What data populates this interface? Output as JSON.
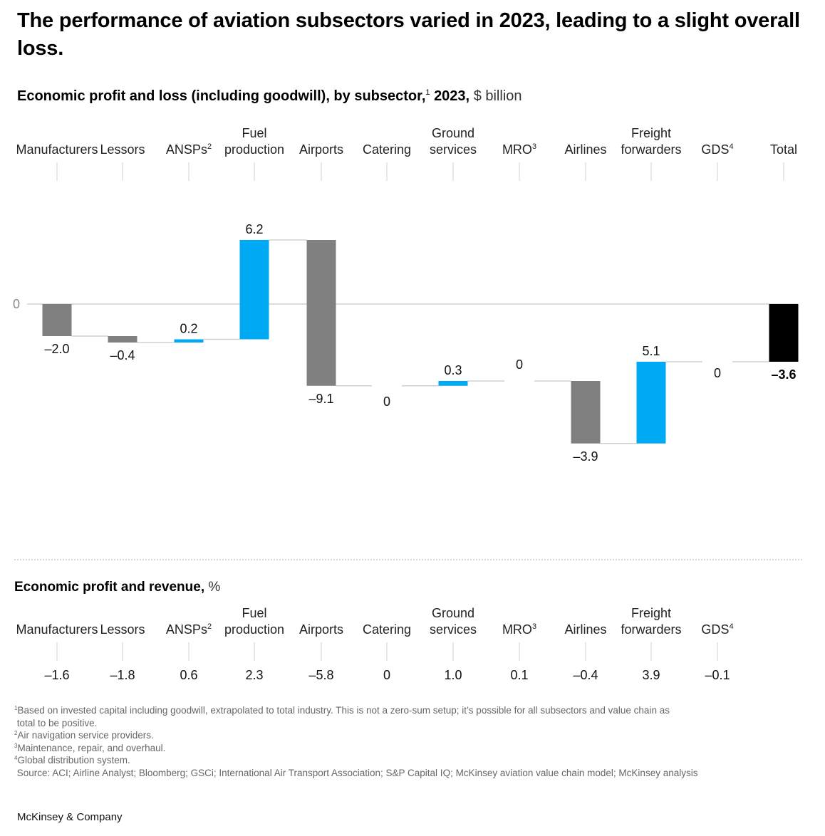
{
  "title": "The performance of aviation subsectors varied in 2023, leading to a slight overall loss.",
  "chart_data": [
    {
      "type": "bar",
      "subtype": "waterfall",
      "title_bold": "Economic profit and loss (including goodwill), by subsector,",
      "title_sup": "1",
      "title_year": "2023,",
      "title_unit": "$ billion",
      "ylabel": "",
      "xlabel": "",
      "zero_label": "0",
      "ylim": [
        -9.4,
        6.5
      ],
      "grid": false,
      "categories": [
        {
          "lines": [
            "",
            "Manufacturers"
          ],
          "sup": ""
        },
        {
          "lines": [
            "",
            "Lessors"
          ],
          "sup": ""
        },
        {
          "lines": [
            "",
            "ANSPs"
          ],
          "sup": "2"
        },
        {
          "lines": [
            "Fuel",
            "production"
          ],
          "sup": ""
        },
        {
          "lines": [
            "",
            "Airports"
          ],
          "sup": ""
        },
        {
          "lines": [
            "",
            "Catering"
          ],
          "sup": ""
        },
        {
          "lines": [
            "Ground",
            "services"
          ],
          "sup": ""
        },
        {
          "lines": [
            "",
            "MRO"
          ],
          "sup": "3"
        },
        {
          "lines": [
            "",
            "Airlines"
          ],
          "sup": ""
        },
        {
          "lines": [
            "Freight",
            "forwarders"
          ],
          "sup": ""
        },
        {
          "lines": [
            "",
            "GDS"
          ],
          "sup": "4"
        },
        {
          "lines": [
            "",
            "Total"
          ],
          "sup": ""
        }
      ],
      "values": [
        -2.0,
        -0.4,
        0.2,
        6.2,
        -9.1,
        0,
        0.3,
        0,
        -3.9,
        5.1,
        0,
        -3.6
      ],
      "labels": [
        "–2.0",
        "–0.4",
        "0.2",
        "6.2",
        "–9.1",
        "0",
        "0.3",
        "0",
        "–3.9",
        "5.1",
        "0",
        "–3.6"
      ],
      "is_total": [
        false,
        false,
        false,
        false,
        false,
        false,
        false,
        false,
        false,
        false,
        false,
        true
      ],
      "colors": {
        "positive": "#00A9F4",
        "negative": "#808080",
        "total": "#000000",
        "connector": "#D0D0D0",
        "axis": "#D0D0D0"
      }
    },
    {
      "type": "table",
      "title_bold": "Economic profit and revenue,",
      "title_unit": "%",
      "categories": [
        {
          "lines": [
            "",
            "Manufacturers"
          ],
          "sup": ""
        },
        {
          "lines": [
            "",
            "Lessors"
          ],
          "sup": ""
        },
        {
          "lines": [
            "",
            "ANSPs"
          ],
          "sup": "2"
        },
        {
          "lines": [
            "Fuel",
            "production"
          ],
          "sup": ""
        },
        {
          "lines": [
            "",
            "Airports"
          ],
          "sup": ""
        },
        {
          "lines": [
            "",
            "Catering"
          ],
          "sup": ""
        },
        {
          "lines": [
            "Ground",
            "services"
          ],
          "sup": ""
        },
        {
          "lines": [
            "",
            "MRO"
          ],
          "sup": "3"
        },
        {
          "lines": [
            "",
            "Airlines"
          ],
          "sup": ""
        },
        {
          "lines": [
            "Freight",
            "forwarders"
          ],
          "sup": ""
        },
        {
          "lines": [
            "",
            "GDS"
          ],
          "sup": "4"
        }
      ],
      "values": [
        -1.6,
        -1.8,
        0.6,
        2.3,
        -5.8,
        0,
        1.0,
        0.1,
        -0.4,
        3.9,
        -0.1
      ],
      "labels": [
        "–1.6",
        "–1.8",
        "0.6",
        "2.3",
        "–5.8",
        "0",
        "1.0",
        "0.1",
        "–0.4",
        "3.9",
        "–0.1"
      ]
    }
  ],
  "footnotes": [
    {
      "sup": "1",
      "text": "Based on invested capital including goodwill, extrapolated to total industry. This is not a zero-sum setup; it’s possible for all subsectors and value chain as\n total to be positive."
    },
    {
      "sup": "2",
      "text": "Air navigation service providers."
    },
    {
      "sup": "3",
      "text": "Maintenance, repair, and overhaul."
    },
    {
      "sup": "4",
      "text": "Global distribution system."
    },
    {
      "sup": "",
      "text": " Source: ACI; Airline Analyst; Bloomberg; GSCi; International Air Transport Association; S&P Capital IQ; McKinsey aviation value chain model; McKinsey analysis"
    }
  ],
  "brand": "McKinsey & Company"
}
